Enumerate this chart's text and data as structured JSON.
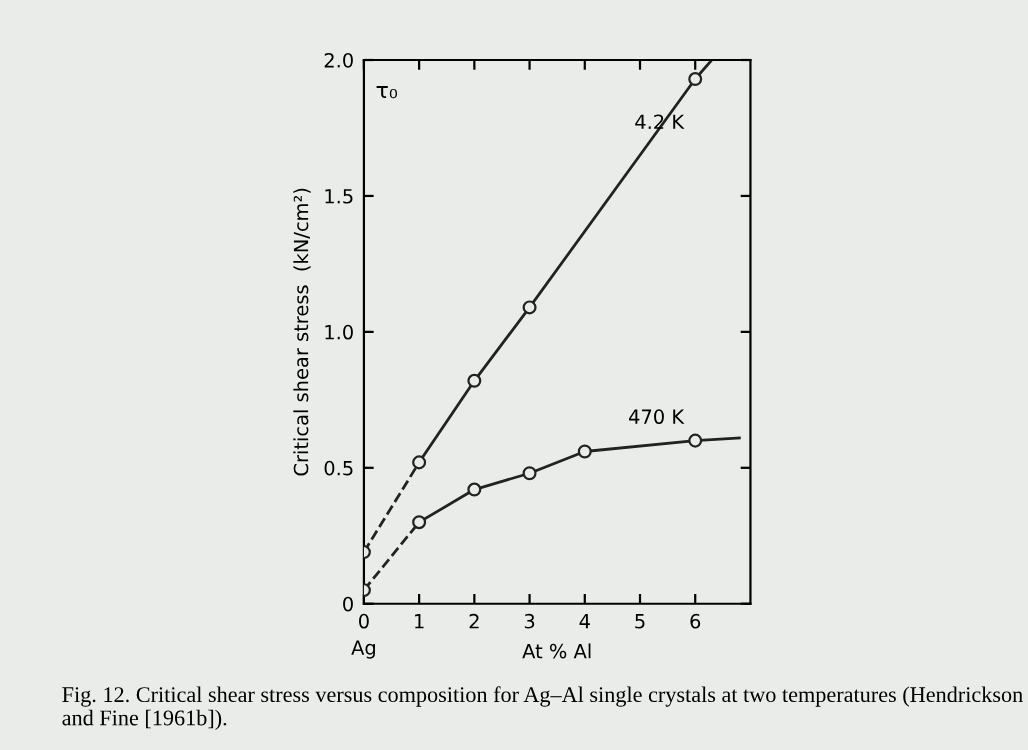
{
  "chart_data": {
    "type": "line",
    "xlabel": "At % Al",
    "ylabel": "Critical shear stress  (kN/cm²)",
    "xlim": [
      0,
      7
    ],
    "ylim": [
      0,
      2.0
    ],
    "xticks": [
      0,
      1,
      2,
      3,
      4,
      5,
      6
    ],
    "yticks": [
      0,
      0.5,
      {
        "value": 1,
        "label": "1.0"
      },
      1.5,
      {
        "value": 2,
        "label": "2.0"
      }
    ],
    "grid": false,
    "series": [
      {
        "name": "4.2 K",
        "color": "#222222",
        "line_style": "solid",
        "marker": "none",
        "x": [
          1,
          2,
          3,
          6,
          6.3
        ],
        "values": [
          0.52,
          0.82,
          1.09,
          1.93,
          2.0
        ]
      },
      {
        "color": "#222222",
        "type": "line",
        "line_style": "dashed",
        "marker": "none",
        "x": [
          0,
          1
        ],
        "values": [
          0.19,
          0.52
        ]
      },
      {
        "color": "#222222",
        "type": "scatter",
        "marker": "circle",
        "x": [
          0,
          1,
          2,
          3,
          6
        ],
        "values": [
          0.19,
          0.52,
          0.82,
          1.09,
          1.93
        ]
      },
      {
        "name": "470 K",
        "color": "#222222",
        "line_style": "solid",
        "marker": "none",
        "x": [
          1,
          2,
          3,
          4,
          6,
          6.8
        ],
        "values": [
          0.3,
          0.42,
          0.48,
          0.56,
          0.6,
          0.61
        ]
      },
      {
        "color": "#222222",
        "type": "line",
        "line_style": "dashed",
        "marker": "none",
        "x": [
          0,
          1
        ],
        "values": [
          0.05,
          0.3
        ]
      },
      {
        "color": "#222222",
        "type": "scatter",
        "marker": "circle",
        "x": [
          0,
          1,
          2,
          3,
          4,
          6
        ],
        "values": [
          0.05,
          0.3,
          0.42,
          0.48,
          0.56,
          0.6
        ]
      }
    ],
    "annotations": [
      "τ₀",
      {
        "text": "Ag",
        "x": 0,
        "y": 0
      },
      "Fig. 12. Critical shear stress versus composition for Ag–Al single crystals at two temperatures (Hendrickson and Fine [1961b])."
    ]
  }
}
